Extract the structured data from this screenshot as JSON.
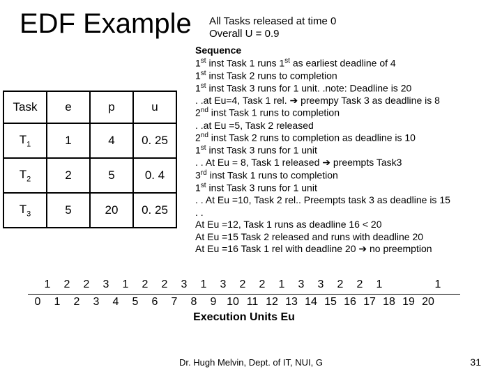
{
  "title": "EDF Example",
  "subtitle_line1": "All Tasks released at time 0",
  "subtitle_line2": "Overall U = 0.9",
  "table": {
    "headers": [
      "Task",
      "e",
      "p",
      "u"
    ],
    "rows": [
      {
        "task_html": "T<span class=\"sub\">1</span>",
        "e": "1",
        "p": "4",
        "u": "0. 25"
      },
      {
        "task_html": "T<span class=\"sub\">2</span>",
        "e": "2",
        "p": "5",
        "u": "0. 4"
      },
      {
        "task_html": "T<span class=\"sub\">3</span>",
        "e": "5",
        "p": "20",
        "u": "0. 25"
      }
    ]
  },
  "sequence": {
    "heading": "Sequence",
    "lines": [
      "1<span class=\"sup\">st</span> inst Task 1 runs 1<span class=\"sup\">st</span> as earliest deadline of 4",
      "1<span class=\"sup\">st</span> inst Task 2 runs to completion",
      "1<span class=\"sup\">st</span> inst Task 3 runs for 1 unit. .note: Deadline is 20",
      ". .at Eu=4, Task 1 rel. <span class=\"arrow\">➔</span> preempy Task 3 as deadline is 8",
      "2<span class=\"sup\">nd</span> inst Task 1 runs to completion",
      ". .at Eu =5, Task 2 released",
      "2<span class=\"sup\">nd</span> inst Task 2 runs to completion as deadline is 10",
      "1<span class=\"sup\">st</span> inst Task 3 runs for 1 unit",
      ". . At Eu = 8, Task 1 released <span class=\"arrow\">➔</span> preempts Task3",
      "3<span class=\"sup\">rd</span> inst Task 1 runs to completion",
      "1<span class=\"sup\">st</span> inst Task 3 runs for 1 unit",
      ". . At Eu =10, Task 2 rel.. Preempts task 3 as deadline is 15",
      ". .",
      "At Eu =12, Task 1 runs as deadline 16 < 20",
      "At Eu =15 Task 2 released and runs with deadline 20",
      "At Eu =16 Task 1 rel with deadline 20 <span class=\"arrow\">➔</span> no preemption"
    ]
  },
  "timeline": {
    "bar": [
      "1",
      "2",
      "2",
      "3",
      "1",
      "2",
      "2",
      "3",
      "1",
      "3",
      "2",
      "2",
      "1",
      "3",
      "3",
      "2",
      "2",
      "1",
      "",
      "",
      "1"
    ],
    "axis": [
      "0",
      "1",
      "2",
      "3",
      "4",
      "5",
      "6",
      "7",
      "8",
      "9",
      "10",
      "11",
      "12",
      "13",
      "14",
      "15",
      "16",
      "17",
      "18",
      "19",
      "20"
    ],
    "axis_label": "Execution Units Eu"
  },
  "footer": "Dr. Hugh Melvin, Dept. of IT, NUI, G",
  "page_number": "31",
  "colors": {
    "text": "#000000",
    "background": "#ffffff",
    "border": "#000000"
  }
}
